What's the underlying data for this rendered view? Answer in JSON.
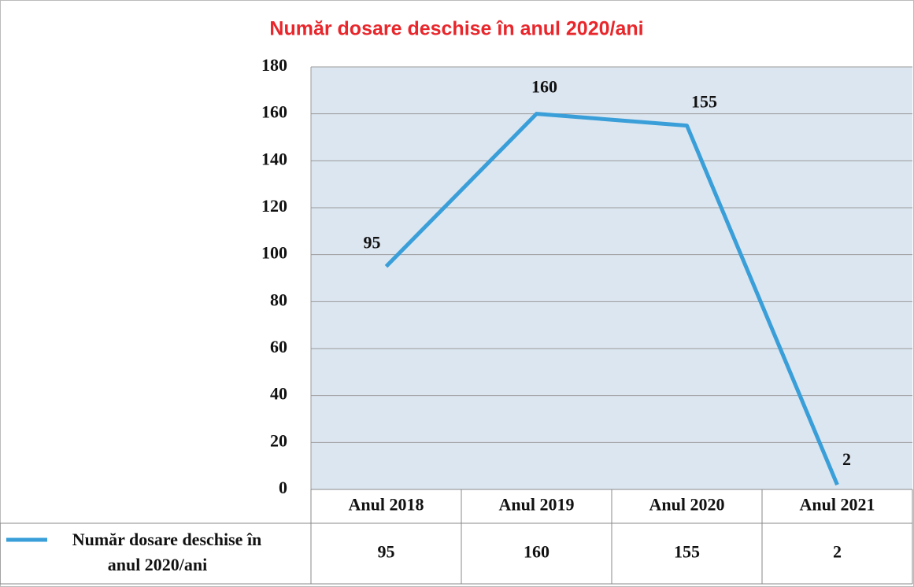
{
  "chart_data": {
    "type": "line",
    "title": "Număr dosare deschise în anul 2020/ani",
    "categories": [
      "Anul 2018",
      "Anul 2019",
      "Anul 2020",
      "Anul 2021"
    ],
    "series": [
      {
        "name": "Număr dosare deschise în anul 2020/ani",
        "color": "#3a9fd8",
        "values": [
          95,
          160,
          155,
          2
        ]
      }
    ],
    "ylim": [
      0,
      180
    ],
    "yticks": [
      0,
      20,
      40,
      60,
      80,
      100,
      120,
      140,
      160,
      180
    ],
    "grid": true
  }
}
